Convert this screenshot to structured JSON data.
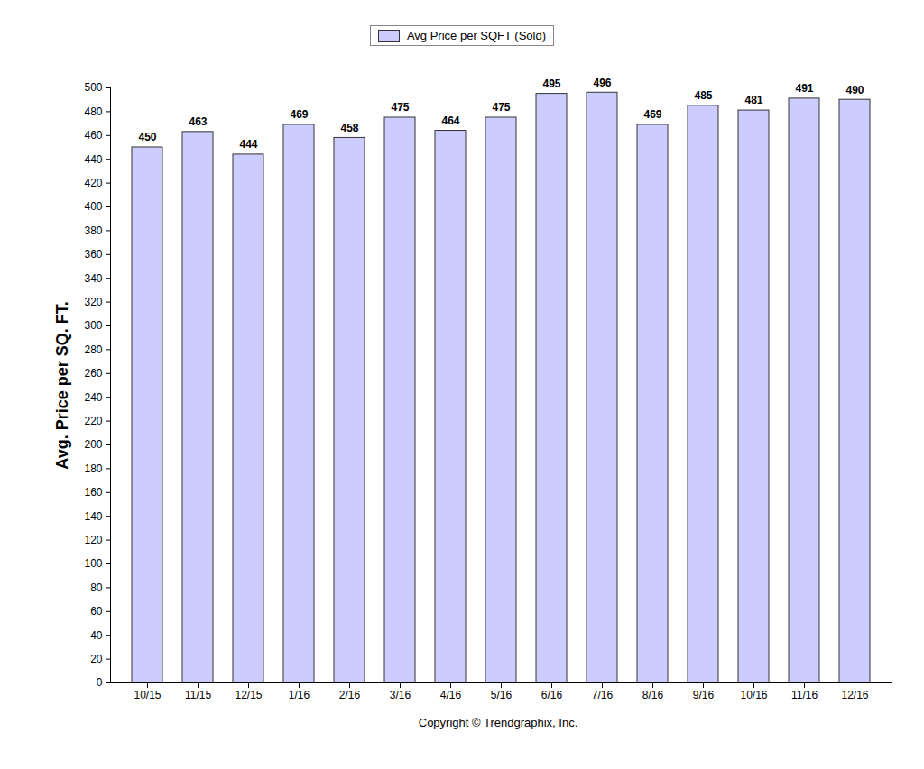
{
  "chart_data": {
    "type": "bar",
    "y_label": "Avg. Price per SQ. FT.",
    "caption": "Copyright © Trendgraphix, Inc.",
    "categories": [
      "10/15",
      "11/15",
      "12/15",
      "1/16",
      "2/16",
      "3/16",
      "4/16",
      "5/16",
      "6/16",
      "7/16",
      "8/16",
      "9/16",
      "10/16",
      "11/16",
      "12/16"
    ],
    "series": [
      {
        "name": "Avg Price per SQFT (Sold)",
        "color": "#ccccff",
        "values": [
          450,
          463,
          444,
          469,
          458,
          475,
          464,
          475,
          495,
          496,
          469,
          485,
          481,
          491,
          490
        ]
      }
    ],
    "ylim": [
      0,
      500
    ],
    "yticks": [
      0,
      20,
      40,
      60,
      80,
      100,
      120,
      140,
      160,
      180,
      200,
      220,
      240,
      260,
      280,
      300,
      320,
      340,
      360,
      380,
      400,
      420,
      440,
      460,
      480,
      500
    ],
    "grid": false,
    "legend": "top",
    "data_labels": true
  }
}
